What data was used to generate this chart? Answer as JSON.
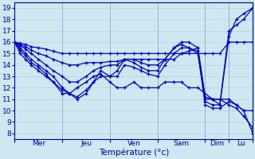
{
  "xlabel": "Température (°c)",
  "xlim": [
    0,
    130
  ],
  "ylim": [
    7.5,
    19.5
  ],
  "yticks": [
    8,
    9,
    10,
    11,
    12,
    13,
    14,
    15,
    16,
    17,
    18,
    19
  ],
  "day_positions": [
    0,
    26,
    52,
    78,
    104,
    117,
    130
  ],
  "day_labels": [
    "Mer",
    "Jeu",
    "Ven",
    "Sam",
    "Dim",
    "Lu"
  ],
  "background_color": "#cce8f0",
  "grid_color": "#aaccdd",
  "line_color": "#0000cc",
  "lines": [
    [
      0,
      16,
      3,
      15.9,
      6,
      15.8,
      9,
      15.6,
      13,
      15.5,
      17,
      15.4,
      21,
      15.2,
      26,
      15.0,
      30,
      15.0,
      34,
      15.0,
      39,
      15.0,
      43,
      15.0,
      47,
      15.0,
      52,
      15.0,
      56,
      15.0,
      60,
      15.0,
      65,
      15.0,
      69,
      15.0,
      73,
      15.0,
      78,
      15.0,
      82,
      15.0,
      87,
      15.0,
      91,
      15.0,
      95,
      15.0,
      100,
      15.0,
      104,
      15.0,
      108,
      15.0,
      112,
      15.0,
      117,
      16.0,
      121,
      16.0,
      125,
      16.0,
      130,
      16.0
    ],
    [
      0,
      16,
      3,
      15.8,
      6,
      15.6,
      9,
      15.3,
      13,
      15.0,
      17,
      14.8,
      21,
      14.5,
      26,
      14.2,
      30,
      14.0,
      34,
      14.0,
      39,
      14.2,
      43,
      14.2,
      47,
      14.2,
      52,
      14.3,
      56,
      14.3,
      60,
      14.5,
      65,
      14.5,
      69,
      14.5,
      73,
      14.5,
      78,
      14.5,
      82,
      14.5,
      87,
      14.5,
      91,
      15.0,
      95,
      15.2,
      100,
      15.5,
      104,
      11.0,
      108,
      11.0,
      112,
      11.0,
      117,
      11.0,
      121,
      10.5,
      125,
      10.0,
      130,
      10.0
    ],
    [
      0,
      16,
      3,
      15.7,
      6,
      15.4,
      9,
      15.0,
      13,
      14.5,
      17,
      14.0,
      21,
      13.5,
      26,
      13.0,
      30,
      12.5,
      34,
      12.5,
      39,
      13.0,
      43,
      13.5,
      47,
      13.8,
      52,
      14.0,
      56,
      14.0,
      60,
      14.5,
      65,
      14.5,
      69,
      14.2,
      73,
      14.0,
      78,
      14.0,
      82,
      14.5,
      87,
      15.5,
      91,
      16.0,
      95,
      16.0,
      100,
      15.5,
      104,
      11.2,
      108,
      11.0,
      112,
      10.5,
      117,
      16.5,
      121,
      18.0,
      125,
      18.5,
      130,
      19.0
    ],
    [
      0,
      16,
      3,
      15.5,
      6,
      15.0,
      9,
      14.5,
      13,
      14.0,
      17,
      13.5,
      21,
      13.0,
      26,
      12.0,
      30,
      11.5,
      34,
      11.0,
      39,
      11.5,
      43,
      12.5,
      47,
      13.5,
      52,
      13.0,
      56,
      13.5,
      60,
      14.5,
      65,
      14.2,
      69,
      13.8,
      73,
      13.5,
      78,
      13.5,
      82,
      14.5,
      87,
      15.5,
      91,
      15.8,
      95,
      15.5,
      100,
      15.0,
      104,
      10.8,
      108,
      10.5,
      112,
      10.5,
      117,
      17.0,
      121,
      17.5,
      125,
      18.0,
      130,
      19.0
    ],
    [
      0,
      16,
      3,
      15.3,
      6,
      14.8,
      9,
      14.2,
      13,
      13.8,
      17,
      13.2,
      21,
      12.5,
      26,
      11.8,
      30,
      11.5,
      34,
      11.2,
      39,
      11.8,
      43,
      12.5,
      47,
      13.0,
      52,
      13.0,
      56,
      13.0,
      60,
      14.0,
      65,
      13.8,
      69,
      13.5,
      73,
      13.2,
      78,
      13.0,
      82,
      14.0,
      87,
      15.0,
      91,
      15.5,
      95,
      15.5,
      100,
      15.2,
      104,
      10.5,
      108,
      10.2,
      112,
      10.2,
      117,
      10.8,
      121,
      10.5,
      125,
      10.0,
      130,
      8.0
    ],
    [
      0,
      16,
      3,
      15.0,
      6,
      14.5,
      9,
      14.0,
      13,
      13.5,
      17,
      13.0,
      21,
      12.5,
      26,
      11.5,
      30,
      11.5,
      34,
      12.0,
      39,
      12.5,
      43,
      13.0,
      47,
      13.2,
      52,
      12.5,
      56,
      12.0,
      60,
      12.0,
      65,
      12.5,
      69,
      12.0,
      73,
      12.0,
      78,
      12.0,
      82,
      12.5,
      87,
      12.5,
      91,
      12.5,
      95,
      12.0,
      100,
      12.0,
      104,
      11.5,
      108,
      11.0,
      112,
      11.0,
      117,
      10.5,
      121,
      10.2,
      125,
      9.5,
      130,
      8.5
    ]
  ]
}
